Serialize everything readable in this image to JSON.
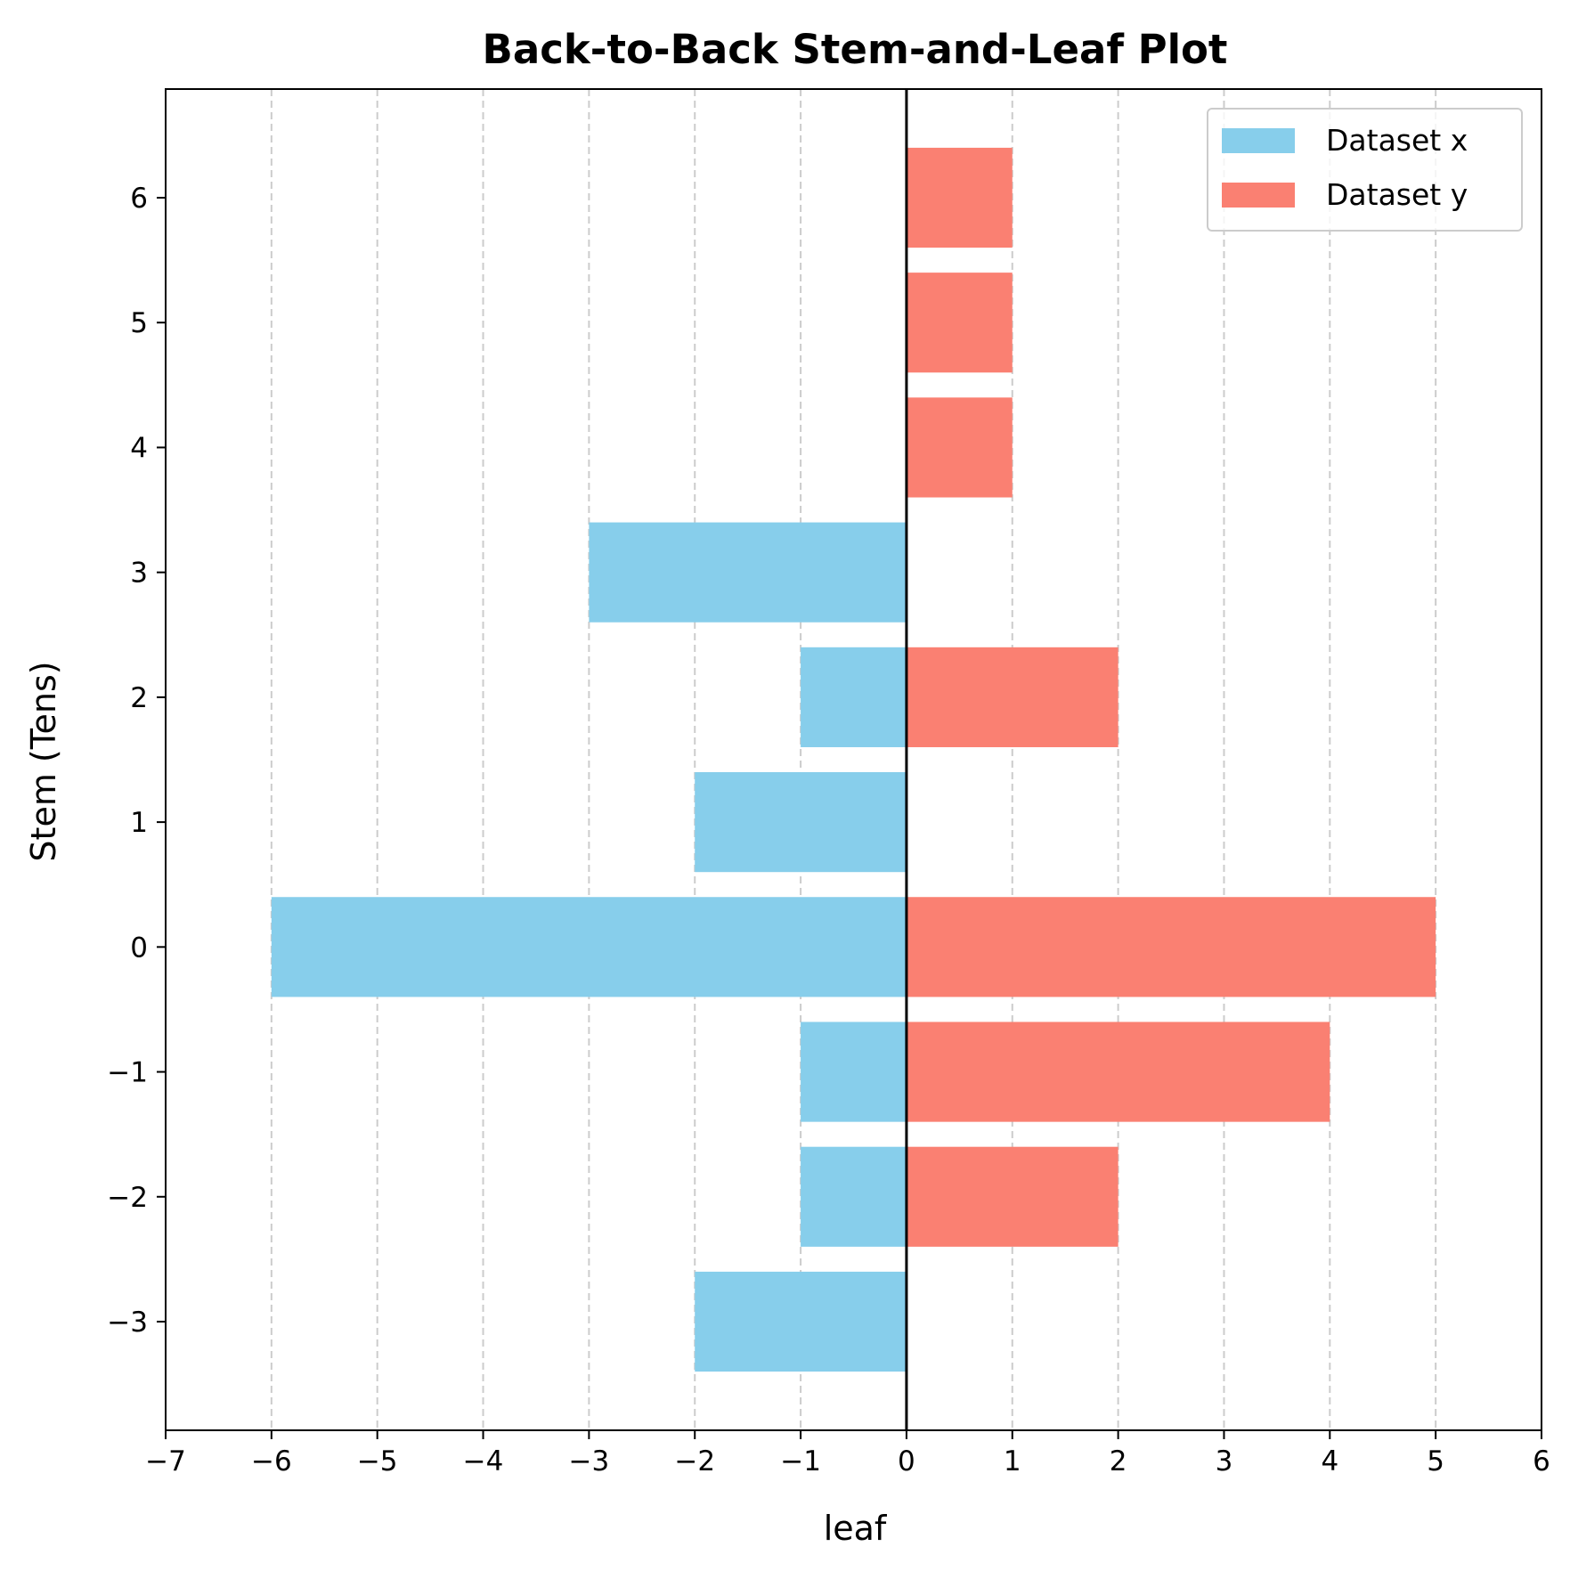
{
  "chart_data": {
    "type": "bar",
    "orientation": "horizontal",
    "title": "Back-to-Back Stem-and-Leaf Plot",
    "xlabel": "leaf",
    "ylabel": "Stem (Tens)",
    "xlim": [
      -7,
      6
    ],
    "ylim": [
      -3.87,
      6.87
    ],
    "x_ticks": [
      -7,
      -6,
      -5,
      -4,
      -3,
      -2,
      -1,
      0,
      1,
      2,
      3,
      4,
      5,
      6
    ],
    "x_tick_labels": [
      "−7",
      "−6",
      "−5",
      "−4",
      "−3",
      "−2",
      "−1",
      "0",
      "1",
      "2",
      "3",
      "4",
      "5",
      "6"
    ],
    "y_ticks": [
      -3,
      -2,
      -1,
      0,
      1,
      2,
      3,
      4,
      5,
      6
    ],
    "y_tick_labels": [
      "−3",
      "−2",
      "−1",
      "0",
      "1",
      "2",
      "3",
      "4",
      "5",
      "6"
    ],
    "categories": [
      -3,
      -2,
      -1,
      0,
      1,
      2,
      3,
      4,
      5,
      6
    ],
    "series": [
      {
        "name": "Dataset x",
        "color": "#87CEEB",
        "values": [
          -2,
          -1,
          -1,
          -6,
          -2,
          -1,
          -3,
          0,
          0,
          0
        ]
      },
      {
        "name": "Dataset y",
        "color": "#FA8072",
        "values": [
          0,
          2,
          4,
          5,
          0,
          2,
          0,
          1,
          1,
          1
        ]
      }
    ],
    "bar_height": 0.8,
    "grid": {
      "x": true,
      "y": false,
      "style": "dashed",
      "color": "#cccccc"
    },
    "zero_line": true,
    "legend_position": "top-right"
  }
}
